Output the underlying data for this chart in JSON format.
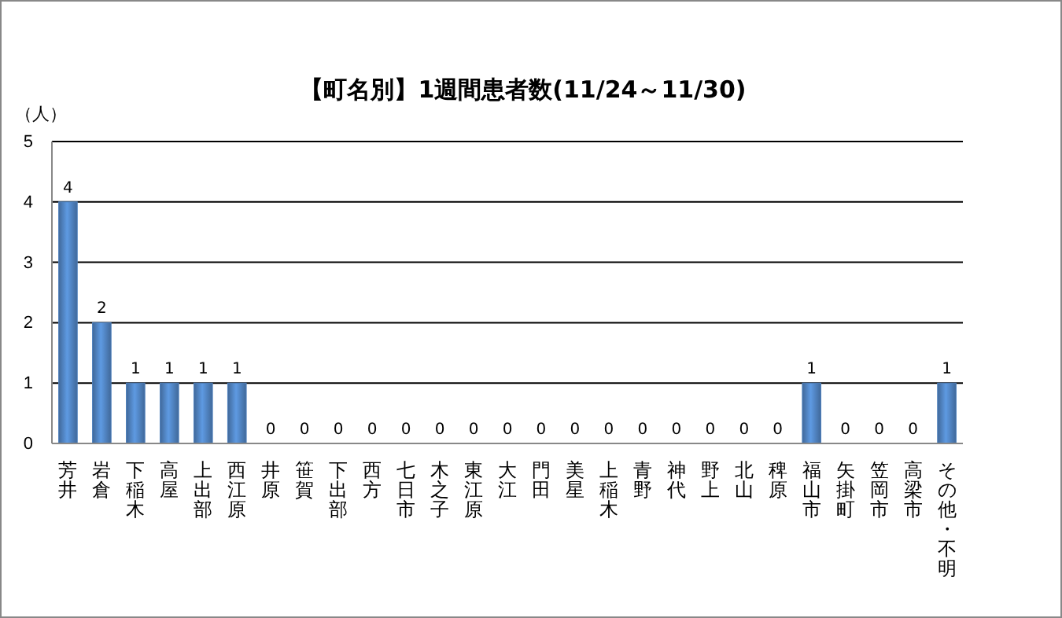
{
  "chart_data": {
    "type": "bar",
    "title": "【町名別】1週間患者数(11/24～11/30)",
    "ylabel": "（人）",
    "categories": [
      "芳井",
      "岩倉",
      "下稲木",
      "高屋",
      "上出部",
      "西江原",
      "井原",
      "笹賀",
      "下出部",
      "西方",
      "七日市",
      "木之子",
      "東江原",
      "大江",
      "門田",
      "美星",
      "上稲木",
      "青野",
      "神代",
      "野上",
      "北山",
      "稗原",
      "福山市",
      "矢掛町",
      "笠岡市",
      "高梁市",
      "その他・不明"
    ],
    "values": [
      4,
      2,
      1,
      1,
      1,
      1,
      0,
      0,
      0,
      0,
      0,
      0,
      0,
      0,
      0,
      0,
      0,
      0,
      0,
      0,
      0,
      0,
      1,
      0,
      0,
      0,
      1
    ],
    "color": "#4f81bd",
    "ylim": [
      0,
      5
    ],
    "yticks": [
      0,
      1,
      2,
      3,
      4,
      5
    ],
    "grid": "y",
    "data_labels": true
  }
}
